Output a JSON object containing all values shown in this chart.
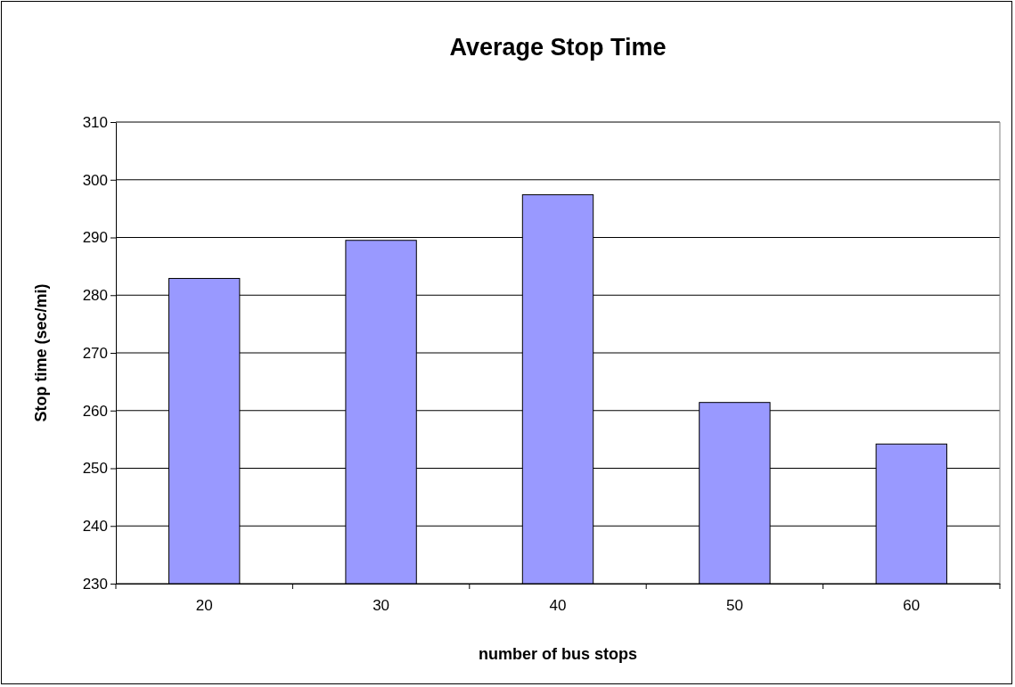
{
  "chart_data": {
    "type": "bar",
    "title": "Average Stop Time",
    "xlabel": "number of bus stops",
    "ylabel": "Stop time (sec/mi)",
    "categories": [
      "20",
      "30",
      "40",
      "50",
      "60"
    ],
    "values": [
      282.9,
      289.5,
      297.4,
      261.4,
      254.2
    ],
    "color": "#9999ff",
    "ylim": [
      230,
      310
    ],
    "yticks": [
      230,
      240,
      250,
      260,
      270,
      280,
      290,
      300,
      310
    ],
    "grid": "y"
  }
}
